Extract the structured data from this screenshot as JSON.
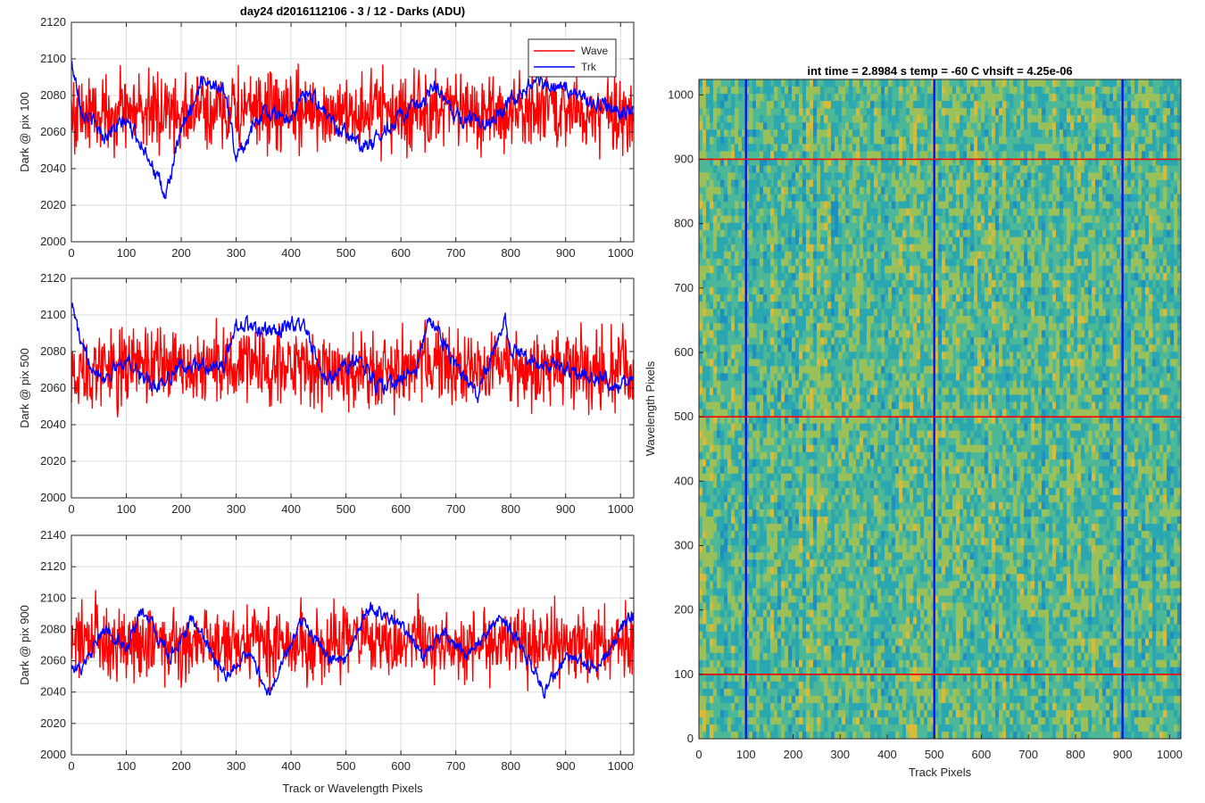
{
  "figure": {
    "title": "day24 d2016112106 - 3 / 12 - Darks (ADU)"
  },
  "chart_data": [
    {
      "type": "line",
      "ylabel": "Dark @ pix 100",
      "xlabel": "",
      "xlim": [
        0,
        1024
      ],
      "ylim": [
        2000,
        2120
      ],
      "xticks": [
        0,
        100,
        200,
        300,
        400,
        500,
        600,
        700,
        800,
        900,
        1000
      ],
      "yticks": [
        2000,
        2020,
        2040,
        2060,
        2080,
        2100,
        2120
      ],
      "grid": true,
      "legend": {
        "placement": "top-right",
        "entries": [
          "Wave",
          "Trk"
        ]
      },
      "series": [
        {
          "name": "Wave",
          "color": "#ff0000",
          "x": [
            0,
            100,
            200,
            300,
            400,
            500,
            600,
            700,
            800,
            900,
            1023
          ],
          "values": [
            2070,
            2072,
            2071,
            2072,
            2070,
            2072,
            2071,
            2070,
            2071,
            2072,
            2071
          ],
          "noise_amplitude": 16
        },
        {
          "name": "Trk",
          "color": "#0000ff",
          "x": [
            0,
            20,
            60,
            100,
            140,
            170,
            200,
            240,
            280,
            300,
            350,
            400,
            430,
            480,
            540,
            600,
            640,
            660,
            700,
            760,
            840,
            880,
            1000,
            1023
          ],
          "values": [
            2098,
            2072,
            2058,
            2066,
            2048,
            2024,
            2060,
            2090,
            2082,
            2046,
            2072,
            2068,
            2083,
            2064,
            2052,
            2070,
            2074,
            2086,
            2068,
            2066,
            2088,
            2085,
            2070,
            2072
          ],
          "noise_amplitude": 4
        }
      ]
    },
    {
      "type": "line",
      "ylabel": "Dark @ pix 500",
      "xlabel": "",
      "xlim": [
        0,
        1024
      ],
      "ylim": [
        2000,
        2120
      ],
      "xticks": [
        0,
        100,
        200,
        300,
        400,
        500,
        600,
        700,
        800,
        900,
        1000
      ],
      "yticks": [
        2000,
        2020,
        2040,
        2060,
        2080,
        2100,
        2120
      ],
      "grid": true,
      "series": [
        {
          "name": "Wave",
          "color": "#ff0000",
          "x": [
            0,
            100,
            200,
            300,
            400,
            500,
            600,
            700,
            800,
            900,
            1023
          ],
          "values": [
            2070,
            2071,
            2072,
            2070,
            2072,
            2068,
            2071,
            2070,
            2071,
            2070,
            2070
          ],
          "noise_amplitude": 16
        },
        {
          "name": "Trk",
          "color": "#0000ff",
          "x": [
            0,
            20,
            60,
            100,
            150,
            200,
            280,
            300,
            360,
            420,
            460,
            520,
            560,
            630,
            650,
            700,
            740,
            790,
            800,
            900,
            1000,
            1023
          ],
          "values": [
            2108,
            2080,
            2066,
            2076,
            2060,
            2072,
            2072,
            2096,
            2090,
            2096,
            2064,
            2076,
            2060,
            2070,
            2100,
            2072,
            2056,
            2098,
            2080,
            2070,
            2062,
            2068
          ],
          "noise_amplitude": 4
        }
      ]
    },
    {
      "type": "line",
      "ylabel": "Dark @ pix 900",
      "xlabel": "Track or Wavelength Pixels",
      "xlim": [
        0,
        1024
      ],
      "ylim": [
        2000,
        2140
      ],
      "xticks": [
        0,
        100,
        200,
        300,
        400,
        500,
        600,
        700,
        800,
        900,
        1000
      ],
      "yticks": [
        2000,
        2020,
        2040,
        2060,
        2080,
        2100,
        2120,
        2140
      ],
      "grid": true,
      "series": [
        {
          "name": "Wave",
          "color": "#ff0000",
          "x": [
            0,
            100,
            200,
            300,
            400,
            500,
            600,
            700,
            800,
            900,
            1023
          ],
          "values": [
            2074,
            2072,
            2071,
            2072,
            2070,
            2071,
            2072,
            2070,
            2071,
            2072,
            2072
          ],
          "noise_amplitude": 17
        },
        {
          "name": "Trk",
          "color": "#0000ff",
          "x": [
            0,
            20,
            60,
            100,
            130,
            180,
            220,
            280,
            320,
            360,
            420,
            470,
            500,
            540,
            600,
            640,
            680,
            720,
            780,
            820,
            860,
            900,
            960,
            1000,
            1023
          ],
          "values": [
            2058,
            2054,
            2080,
            2070,
            2092,
            2062,
            2086,
            2050,
            2066,
            2040,
            2086,
            2062,
            2058,
            2094,
            2084,
            2062,
            2080,
            2062,
            2088,
            2070,
            2040,
            2062,
            2056,
            2080,
            2090
          ],
          "noise_amplitude": 4
        }
      ]
    },
    {
      "type": "heatmap",
      "title": "int time = 2.8984 s    temp = -60 C    vhsift = 4.25e-06",
      "xlabel": "Track Pixels",
      "ylabel": "Wavelength Pixels",
      "xlim": [
        0,
        1024
      ],
      "ylim": [
        0,
        1024
      ],
      "xticks": [
        0,
        100,
        200,
        300,
        400,
        500,
        600,
        700,
        800,
        900,
        1000
      ],
      "yticks": [
        0,
        100,
        200,
        300,
        400,
        500,
        600,
        700,
        800,
        900,
        1000
      ],
      "colormap": [
        "#1f8fc2",
        "#2aa7b0",
        "#4db898",
        "#9ac05a",
        "#d8bb3a"
      ],
      "vertical_markers": {
        "color": "#0000ff",
        "x": [
          100,
          500,
          900
        ]
      },
      "horizontal_markers": {
        "color": "#ff0000",
        "y": [
          100,
          500,
          900
        ]
      }
    }
  ]
}
